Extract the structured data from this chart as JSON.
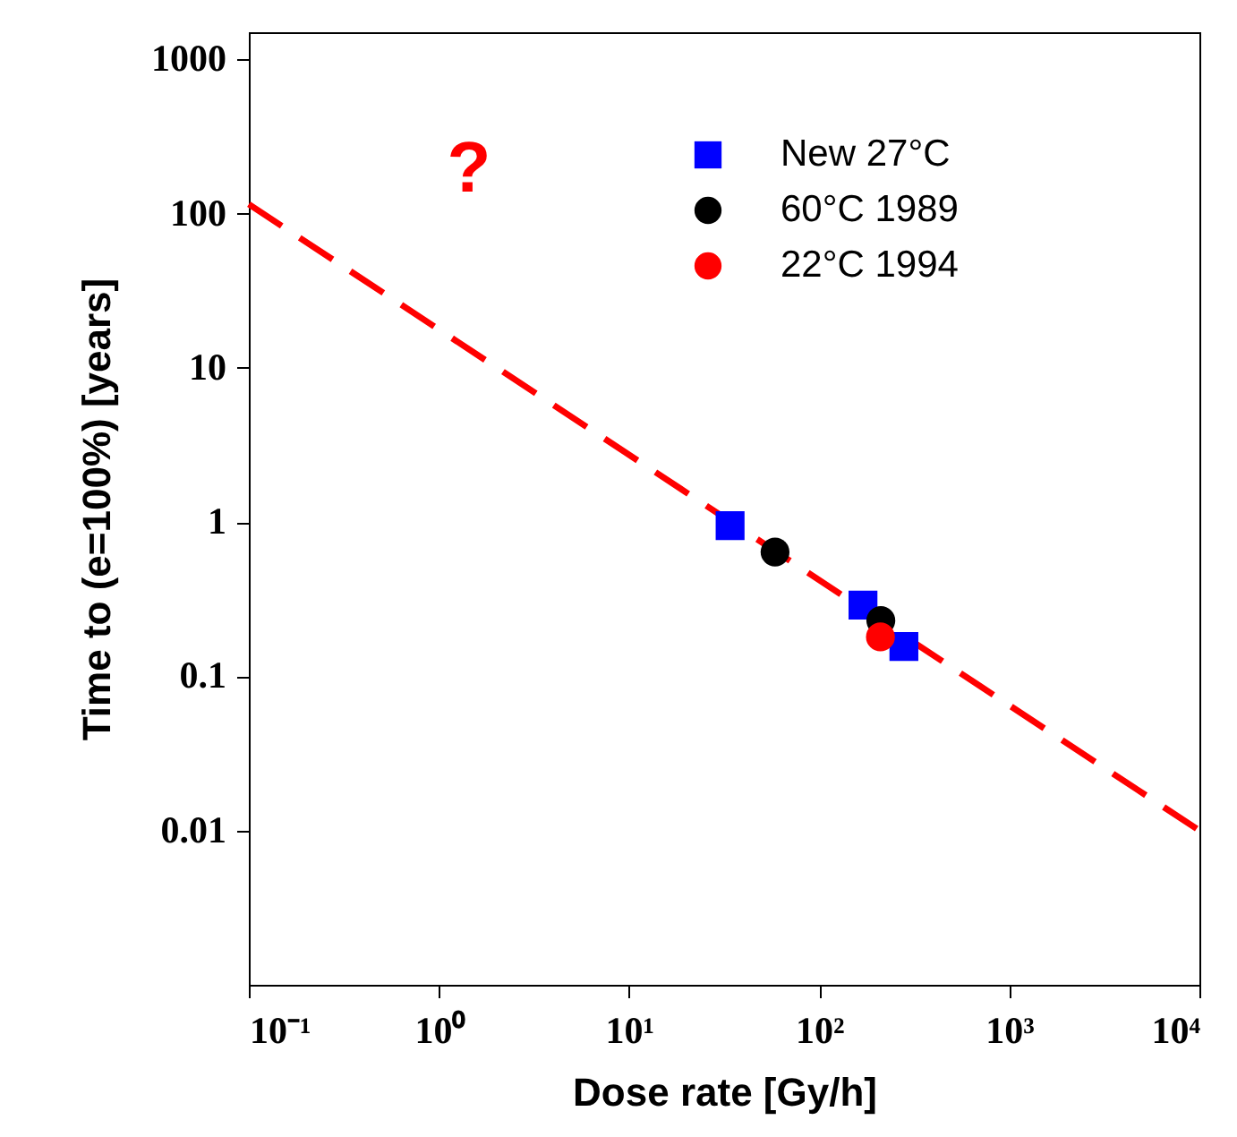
{
  "chart_data": {
    "type": "scatter",
    "xlabel": "Dose rate [Gy/h]",
    "ylabel": "Time to (e=100%) [years]",
    "log": "xy",
    "xlim": [
      0.1,
      10000
    ],
    "ylim": [
      0.001,
      1500
    ],
    "xticks": [
      {
        "value": 0.1,
        "label": "10⁻¹"
      },
      {
        "value": 1,
        "label": "10⁰"
      },
      {
        "value": 10,
        "label": "10¹"
      },
      {
        "value": 100,
        "label": "10²"
      },
      {
        "value": 1000,
        "label": "10³"
      },
      {
        "value": 10000,
        "label": "10⁴"
      }
    ],
    "yticks": [
      0.01,
      0.1,
      1,
      10,
      100,
      1000
    ],
    "grid": false,
    "legend": "top right",
    "annotations": [
      "?"
    ],
    "series": [
      {
        "name": "New 27°C",
        "color": "#0000ff",
        "marker": "square",
        "x": [
          34,
          170,
          279
        ],
        "values": [
          0.95,
          0.29,
          0.156
        ]
      },
      {
        "name": "60°C 1989",
        "color": "#000000",
        "marker": "circle",
        "x": [
          58.6,
          211
        ],
        "values": [
          0.64,
          0.23
        ]
      },
      {
        "name": "22°C 1994",
        "color": "#ff0000",
        "marker": "circle",
        "x": [
          210
        ],
        "values": [
          0.18
        ]
      },
      {
        "type": "line",
        "color": "#ff0000",
        "line_style": "dashed",
        "x": [
          0.1,
          10000
        ],
        "values": [
          115,
          0.01
        ]
      }
    ]
  }
}
